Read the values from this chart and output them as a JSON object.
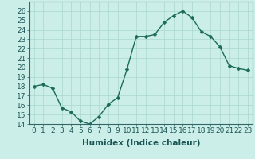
{
  "x": [
    0,
    1,
    2,
    3,
    4,
    5,
    6,
    7,
    8,
    9,
    10,
    11,
    12,
    13,
    14,
    15,
    16,
    17,
    18,
    19,
    20,
    21,
    22,
    23
  ],
  "y": [
    18,
    18.2,
    17.8,
    15.7,
    15.3,
    14.3,
    14.0,
    14.8,
    16.1,
    16.8,
    19.8,
    23.3,
    23.3,
    23.5,
    24.8,
    25.5,
    26.0,
    25.3,
    23.8,
    23.3,
    22.2,
    20.2,
    19.9,
    19.7
  ],
  "line_color": "#1a6b5a",
  "marker": "D",
  "marker_size": 2.5,
  "linewidth": 1.0,
  "xlabel": "Humidex (Indice chaleur)",
  "xlim": [
    -0.5,
    23.5
  ],
  "ylim": [
    14,
    27
  ],
  "yticks": [
    14,
    15,
    16,
    17,
    18,
    19,
    20,
    21,
    22,
    23,
    24,
    25,
    26
  ],
  "xticks": [
    0,
    1,
    2,
    3,
    4,
    5,
    6,
    7,
    8,
    9,
    10,
    11,
    12,
    13,
    14,
    15,
    16,
    17,
    18,
    19,
    20,
    21,
    22,
    23
  ],
  "xtick_labels": [
    "0",
    "1",
    "2",
    "3",
    "4",
    "5",
    "6",
    "7",
    "8",
    "9",
    "10",
    "11",
    "12",
    "13",
    "14",
    "15",
    "16",
    "17",
    "18",
    "19",
    "20",
    "21",
    "22",
    "23"
  ],
  "bg_color": "#cceee8",
  "grid_color": "#aad6cc",
  "axes_color": "#336666",
  "tick_color": "#1a5555",
  "label_fontsize": 7.5,
  "tick_fontsize": 6.5
}
